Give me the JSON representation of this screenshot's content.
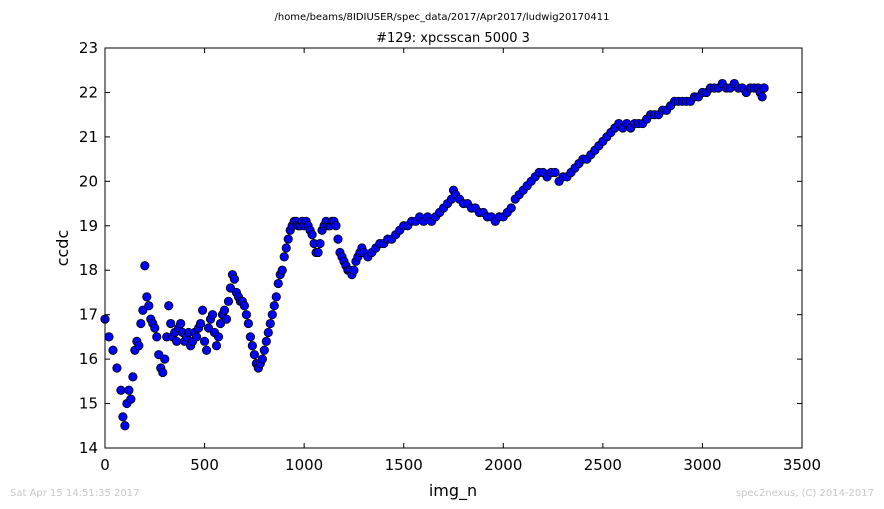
{
  "page": {
    "suptitle": "/home/beams/8IDIUSER/spec_data/2017/Apr2017/ludwig20170411",
    "footer_left": "Sat Apr 15 14:51:35 2017",
    "footer_right": "spec2nexus, (C) 2014-2017"
  },
  "chart_data": {
    "type": "scatter",
    "title": "#129: xpcsscan 5000 3",
    "xlabel": "img_n",
    "ylabel": "ccdc",
    "xlim": [
      0,
      3500
    ],
    "ylim": [
      14,
      23
    ],
    "xticks": [
      "0",
      "500",
      "1000",
      "1500",
      "2000",
      "2500",
      "3000",
      "3500"
    ],
    "yticks": [
      "14",
      "15",
      "16",
      "17",
      "18",
      "19",
      "20",
      "21",
      "22",
      "23"
    ],
    "grid": false,
    "marker_color": "#0000ff",
    "marker_edge": "#000000",
    "series": [
      {
        "x": [
          0,
          20,
          40,
          60,
          80,
          90,
          100,
          110,
          120,
          130,
          140,
          150,
          160,
          170,
          180,
          190,
          200,
          210,
          220,
          230,
          240,
          250,
          260,
          270,
          280,
          290,
          300,
          310,
          320,
          330,
          340,
          350,
          360,
          370,
          380,
          390,
          400,
          410,
          420,
          430,
          440,
          450,
          460,
          470,
          480,
          490,
          500,
          510,
          520,
          530,
          540,
          550,
          560,
          570,
          580,
          590,
          600,
          610,
          620,
          630,
          640,
          650,
          660,
          670,
          680,
          690,
          700,
          710,
          720,
          730,
          740,
          750,
          760,
          770,
          780,
          790,
          800,
          810,
          820,
          830,
          840,
          850,
          860,
          870,
          880,
          890,
          900,
          910,
          920,
          930,
          940,
          950,
          960,
          970,
          980,
          990,
          1000,
          1010,
          1020,
          1030,
          1040,
          1050,
          1060,
          1070,
          1080,
          1090,
          1100,
          1110,
          1120,
          1130,
          1140,
          1150,
          1160,
          1170,
          1180,
          1190,
          1200,
          1210,
          1220,
          1230,
          1240,
          1250,
          1260,
          1270,
          1280,
          1290,
          1300,
          1320,
          1340,
          1360,
          1380,
          1400,
          1420,
          1440,
          1460,
          1480,
          1500,
          1520,
          1540,
          1560,
          1580,
          1600,
          1620,
          1640,
          1660,
          1680,
          1700,
          1720,
          1740,
          1750,
          1760,
          1780,
          1800,
          1820,
          1840,
          1860,
          1880,
          1900,
          1920,
          1940,
          1960,
          1980,
          2000,
          2020,
          2040,
          2060,
          2080,
          2100,
          2120,
          2140,
          2160,
          2180,
          2200,
          2220,
          2240,
          2260,
          2280,
          2300,
          2320,
          2340,
          2360,
          2380,
          2400,
          2420,
          2440,
          2460,
          2480,
          2500,
          2520,
          2540,
          2560,
          2580,
          2600,
          2620,
          2640,
          2660,
          2680,
          2700,
          2720,
          2740,
          2760,
          2780,
          2800,
          2820,
          2840,
          2860,
          2880,
          2900,
          2920,
          2940,
          2960,
          2980,
          3000,
          3020,
          3040,
          3060,
          3080,
          3100,
          3120,
          3140,
          3160,
          3180,
          3200,
          3220,
          3240,
          3260,
          3280,
          3290,
          3300,
          3310
        ],
        "y": [
          16.9,
          16.5,
          16.2,
          15.8,
          15.3,
          14.7,
          14.5,
          15.0,
          15.3,
          15.1,
          15.6,
          16.2,
          16.4,
          16.3,
          16.8,
          17.1,
          18.1,
          17.4,
          17.2,
          16.9,
          16.8,
          16.7,
          16.5,
          16.1,
          15.8,
          15.7,
          16.0,
          16.5,
          17.2,
          16.8,
          16.5,
          16.6,
          16.4,
          16.7,
          16.8,
          16.6,
          16.4,
          16.5,
          16.6,
          16.3,
          16.4,
          16.6,
          16.5,
          16.7,
          16.8,
          17.1,
          16.4,
          16.2,
          16.7,
          16.9,
          17.0,
          16.6,
          16.3,
          16.5,
          16.8,
          17.0,
          17.1,
          16.9,
          17.3,
          17.6,
          17.9,
          17.8,
          17.5,
          17.4,
          17.3,
          17.3,
          17.2,
          17.0,
          16.8,
          16.5,
          16.3,
          16.1,
          15.9,
          15.8,
          15.9,
          16.0,
          16.2,
          16.4,
          16.6,
          16.8,
          17.0,
          17.2,
          17.4,
          17.7,
          17.9,
          18.0,
          18.3,
          18.5,
          18.7,
          18.9,
          19.0,
          19.1,
          19.1,
          19.0,
          19.0,
          19.1,
          19.0,
          19.1,
          19.0,
          18.9,
          18.8,
          18.6,
          18.4,
          18.4,
          18.6,
          18.9,
          19.0,
          19.1,
          19.0,
          19.0,
          19.1,
          19.1,
          19.0,
          18.7,
          18.4,
          18.3,
          18.2,
          18.1,
          18.0,
          18.0,
          17.9,
          18.0,
          18.2,
          18.3,
          18.4,
          18.5,
          18.4,
          18.3,
          18.4,
          18.5,
          18.6,
          18.6,
          18.7,
          18.7,
          18.8,
          18.9,
          19.0,
          19.0,
          19.1,
          19.1,
          19.2,
          19.1,
          19.2,
          19.1,
          19.2,
          19.3,
          19.4,
          19.5,
          19.6,
          19.8,
          19.7,
          19.6,
          19.5,
          19.5,
          19.4,
          19.4,
          19.3,
          19.3,
          19.2,
          19.2,
          19.1,
          19.2,
          19.2,
          19.3,
          19.4,
          19.6,
          19.7,
          19.8,
          19.9,
          20.0,
          20.1,
          20.2,
          20.2,
          20.1,
          20.2,
          20.2,
          20.0,
          20.1,
          20.1,
          20.2,
          20.3,
          20.4,
          20.5,
          20.5,
          20.6,
          20.7,
          20.8,
          20.9,
          21.0,
          21.1,
          21.2,
          21.3,
          21.2,
          21.3,
          21.2,
          21.3,
          21.3,
          21.3,
          21.4,
          21.5,
          21.5,
          21.5,
          21.6,
          21.6,
          21.7,
          21.8,
          21.8,
          21.8,
          21.8,
          21.8,
          21.9,
          21.9,
          22.0,
          22.0,
          22.1,
          22.1,
          22.1,
          22.2,
          22.1,
          22.1,
          22.2,
          22.1,
          22.1,
          22.0,
          22.1,
          22.1,
          22.1,
          22.0,
          21.9,
          22.1
        ]
      }
    ]
  }
}
